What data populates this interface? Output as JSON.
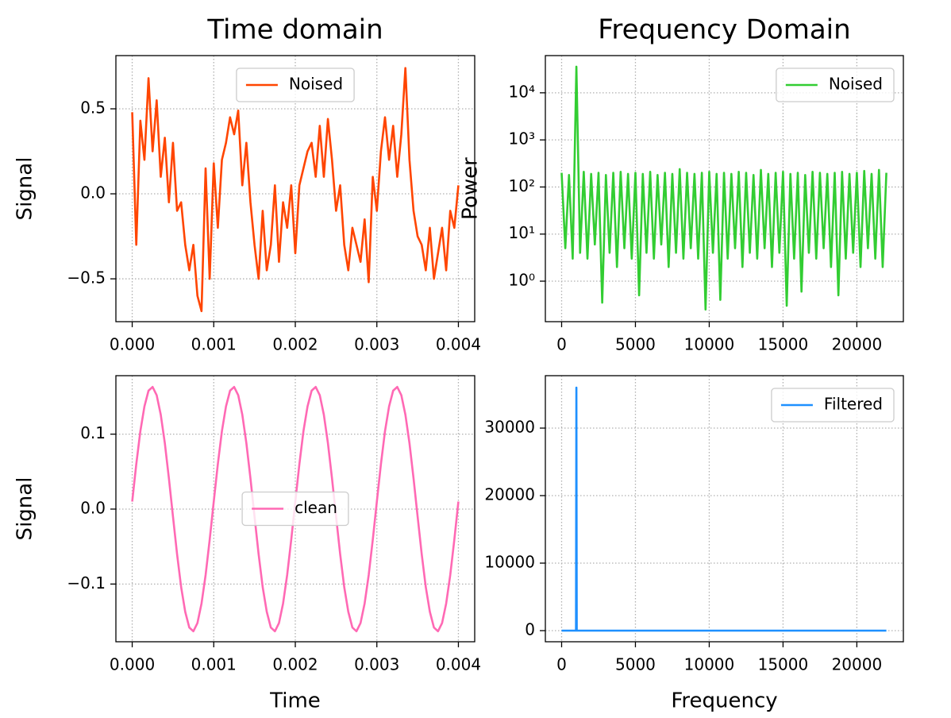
{
  "chart_data": [
    {
      "type": "line",
      "title": "Time domain",
      "ylabel": "Signal",
      "legend": "upper center",
      "grid": true,
      "x": [
        0,
        5e-05,
        0.0001,
        0.00015,
        0.0002,
        0.00025,
        0.0003,
        0.00035,
        0.0004,
        0.00045,
        0.0005,
        0.00055,
        0.0006,
        0.00065,
        0.0007,
        0.00075,
        0.0008,
        0.00085,
        0.0009,
        0.00095,
        0.001,
        0.00105,
        0.0011,
        0.00115,
        0.0012,
        0.00125,
        0.0013,
        0.00135,
        0.0014,
        0.00145,
        0.0015,
        0.00155,
        0.0016,
        0.00165,
        0.0017,
        0.00175,
        0.0018,
        0.00185,
        0.0019,
        0.00195,
        0.002,
        0.00205,
        0.0021,
        0.00215,
        0.0022,
        0.00225,
        0.0023,
        0.00235,
        0.0024,
        0.00245,
        0.0025,
        0.00255,
        0.0026,
        0.00265,
        0.0027,
        0.00275,
        0.0028,
        0.00285,
        0.0029,
        0.00295,
        0.003,
        0.00305,
        0.0031,
        0.00315,
        0.0032,
        0.00325,
        0.0033,
        0.00335,
        0.0034,
        0.00345,
        0.0035,
        0.00355,
        0.0036,
        0.00365,
        0.0037,
        0.00375,
        0.0038,
        0.00385,
        0.0039,
        0.00395,
        0.004
      ],
      "series": [
        {
          "name": "Noised",
          "color": "#ff4500",
          "values": [
            0.48,
            -0.3,
            0.43,
            0.2,
            0.68,
            0.25,
            0.55,
            0.1,
            0.33,
            -0.05,
            0.3,
            -0.1,
            -0.05,
            -0.3,
            -0.45,
            -0.3,
            -0.6,
            -0.69,
            0.15,
            -0.5,
            0.18,
            -0.2,
            0.2,
            0.3,
            0.45,
            0.35,
            0.49,
            0.05,
            0.3,
            -0.05,
            -0.3,
            -0.5,
            -0.1,
            -0.45,
            -0.3,
            0.05,
            -0.4,
            -0.05,
            -0.2,
            0.05,
            -0.35,
            0.05,
            0.15,
            0.25,
            0.3,
            0.1,
            0.4,
            0.1,
            0.44,
            0.2,
            -0.1,
            0.05,
            -0.3,
            -0.45,
            -0.2,
            -0.3,
            -0.4,
            -0.15,
            -0.52,
            0.1,
            -0.1,
            0.25,
            0.45,
            0.2,
            0.4,
            0.1,
            0.35,
            0.74,
            0.2,
            -0.1,
            -0.25,
            -0.3,
            -0.45,
            -0.2,
            -0.5,
            -0.35,
            -0.2,
            -0.45,
            -0.1,
            -0.2,
            0.05
          ]
        }
      ],
      "xlim": [
        -0.0002,
        0.0042
      ],
      "ylim": [
        -0.752,
        0.813
      ],
      "xticks": [
        {
          "value": 0,
          "label": "0.000"
        },
        {
          "value": 0.001,
          "label": "0.001"
        },
        {
          "value": 0.002,
          "label": "0.002"
        },
        {
          "value": 0.003,
          "label": "0.003"
        },
        {
          "value": 0.004,
          "label": "0.004"
        }
      ],
      "yticks": [
        {
          "value": -0.5,
          "label": "−0.5"
        },
        {
          "value": 0,
          "label": "0.0"
        },
        0.5
      ]
    },
    {
      "type": "line",
      "title": "Frequency Domain",
      "ylabel": "Power",
      "legend": "upper right",
      "grid": true,
      "yscale": "log",
      "x": [
        0,
        250,
        500,
        750,
        1000,
        1250,
        1500,
        1750,
        2000,
        2250,
        2500,
        2750,
        3000,
        3250,
        3500,
        3750,
        4000,
        4250,
        4500,
        4750,
        5000,
        5250,
        5500,
        5750,
        6000,
        6250,
        6500,
        6750,
        7000,
        7250,
        7500,
        7750,
        8000,
        8250,
        8500,
        8750,
        9000,
        9250,
        9500,
        9750,
        10000,
        10250,
        10500,
        10750,
        11000,
        11250,
        11500,
        11750,
        12000,
        12250,
        12500,
        12750,
        13000,
        13250,
        13500,
        13750,
        14000,
        14250,
        14500,
        14750,
        15000,
        15250,
        15500,
        15750,
        16000,
        16250,
        16500,
        16750,
        17000,
        17250,
        17500,
        17750,
        18000,
        18250,
        18500,
        18750,
        19000,
        19250,
        19500,
        19750,
        20000,
        20250,
        20500,
        20750,
        21000,
        21250,
        21500,
        21750,
        22000
      ],
      "series": [
        {
          "name": "Noised",
          "color": "#32cd32",
          "values": [
            200,
            5,
            180,
            3,
            36000,
            4,
            210,
            3,
            190,
            6,
            200,
            0.35,
            180,
            4,
            200,
            2,
            210,
            5,
            190,
            3,
            200,
            0.5,
            190,
            4,
            210,
            3,
            180,
            6,
            200,
            2,
            190,
            4,
            240,
            3,
            200,
            5,
            190,
            3,
            200,
            0.25,
            210,
            4,
            190,
            0.4,
            200,
            3,
            190,
            5,
            210,
            2,
            200,
            4,
            180,
            3,
            230,
            5,
            190,
            2,
            200,
            4,
            210,
            0.3,
            190,
            3,
            200,
            0.6,
            180,
            4,
            210,
            3,
            200,
            5,
            190,
            2,
            200,
            0.5,
            210,
            3,
            190,
            4,
            200,
            2,
            220,
            5,
            190,
            3,
            230,
            2,
            200
          ]
        }
      ],
      "xlim": [
        -1102,
        23152
      ],
      "ylim": [
        0.138,
        61700
      ],
      "xticks": [
        0,
        5000,
        10000,
        15000,
        20000
      ],
      "yticks": [
        {
          "value": 1,
          "label": "10⁰"
        },
        {
          "value": 10,
          "label": "10¹"
        },
        {
          "value": 100,
          "label": "10²"
        },
        {
          "value": 1000,
          "label": "10³"
        },
        {
          "value": 10000,
          "label": "10⁴"
        }
      ]
    },
    {
      "type": "line",
      "xlabel": "Time",
      "ylabel": "Signal",
      "legend": "center",
      "grid": true,
      "x": [
        0,
        5e-05,
        0.0001,
        0.00015,
        0.0002,
        0.00025,
        0.0003,
        0.00035,
        0.0004,
        0.00045,
        0.0005,
        0.00055,
        0.0006,
        0.00065,
        0.0007,
        0.00075,
        0.0008,
        0.00085,
        0.0009,
        0.00095,
        0.001,
        0.00105,
        0.0011,
        0.00115,
        0.0012,
        0.00125,
        0.0013,
        0.00135,
        0.0014,
        0.00145,
        0.0015,
        0.00155,
        0.0016,
        0.00165,
        0.0017,
        0.00175,
        0.0018,
        0.00185,
        0.0019,
        0.00195,
        0.002,
        0.00205,
        0.0021,
        0.00215,
        0.0022,
        0.00225,
        0.0023,
        0.00235,
        0.0024,
        0.00245,
        0.0025,
        0.00255,
        0.0026,
        0.00265,
        0.0027,
        0.00275,
        0.0028,
        0.00285,
        0.0029,
        0.00295,
        0.003,
        0.00305,
        0.0031,
        0.00315,
        0.0032,
        0.00325,
        0.0033,
        0.00335,
        0.0034,
        0.00345,
        0.0035,
        0.00355,
        0.0036,
        0.00365,
        0.0037,
        0.00375,
        0.0038,
        0.00385,
        0.0039,
        0.00395,
        0.004
      ],
      "series": [
        {
          "name": "clean",
          "color": "#ff69b4",
          "values": [
            0.01,
            0.06,
            0.104,
            0.137,
            0.158,
            0.163,
            0.152,
            0.126,
            0.088,
            0.041,
            -0.01,
            -0.06,
            -0.104,
            -0.137,
            -0.158,
            -0.163,
            -0.152,
            -0.126,
            -0.088,
            -0.041,
            0.01,
            0.06,
            0.104,
            0.137,
            0.158,
            0.163,
            0.152,
            0.126,
            0.088,
            0.041,
            -0.01,
            -0.06,
            -0.104,
            -0.137,
            -0.158,
            -0.163,
            -0.152,
            -0.126,
            -0.088,
            -0.041,
            0.01,
            0.06,
            0.104,
            0.137,
            0.158,
            0.163,
            0.152,
            0.126,
            0.088,
            0.041,
            -0.01,
            -0.06,
            -0.104,
            -0.137,
            -0.158,
            -0.163,
            -0.152,
            -0.126,
            -0.088,
            -0.041,
            0.01,
            0.06,
            0.104,
            0.137,
            0.158,
            0.163,
            0.152,
            0.126,
            0.088,
            0.041,
            -0.01,
            -0.06,
            -0.104,
            -0.137,
            -0.158,
            -0.163,
            -0.152,
            -0.126,
            -0.088,
            -0.041,
            0.01
          ]
        }
      ],
      "xlim": [
        -0.0002,
        0.0042
      ],
      "ylim": [
        -0.177,
        0.178
      ],
      "xticks": [
        {
          "value": 0,
          "label": "0.000"
        },
        {
          "value": 0.001,
          "label": "0.001"
        },
        {
          "value": 0.002,
          "label": "0.002"
        },
        {
          "value": 0.003,
          "label": "0.003"
        },
        {
          "value": 0.004,
          "label": "0.004"
        }
      ],
      "yticks": [
        {
          "value": -0.1,
          "label": "−0.1"
        },
        {
          "value": 0,
          "label": "0.0"
        },
        0.1
      ]
    },
    {
      "type": "line",
      "xlabel": "Frequency",
      "legend": "upper right",
      "grid": true,
      "x": [
        0,
        975,
        1000,
        1025,
        22000
      ],
      "series": [
        {
          "name": "Filtered",
          "color": "#1e90ff",
          "values": [
            0,
            0,
            36000,
            0,
            0
          ]
        }
      ],
      "xlim": [
        -1102,
        23152
      ],
      "ylim": [
        -1647,
        37765
      ],
      "xticks": [
        0,
        5000,
        10000,
        15000,
        20000
      ],
      "yticks": [
        0,
        10000,
        20000,
        30000
      ]
    }
  ]
}
